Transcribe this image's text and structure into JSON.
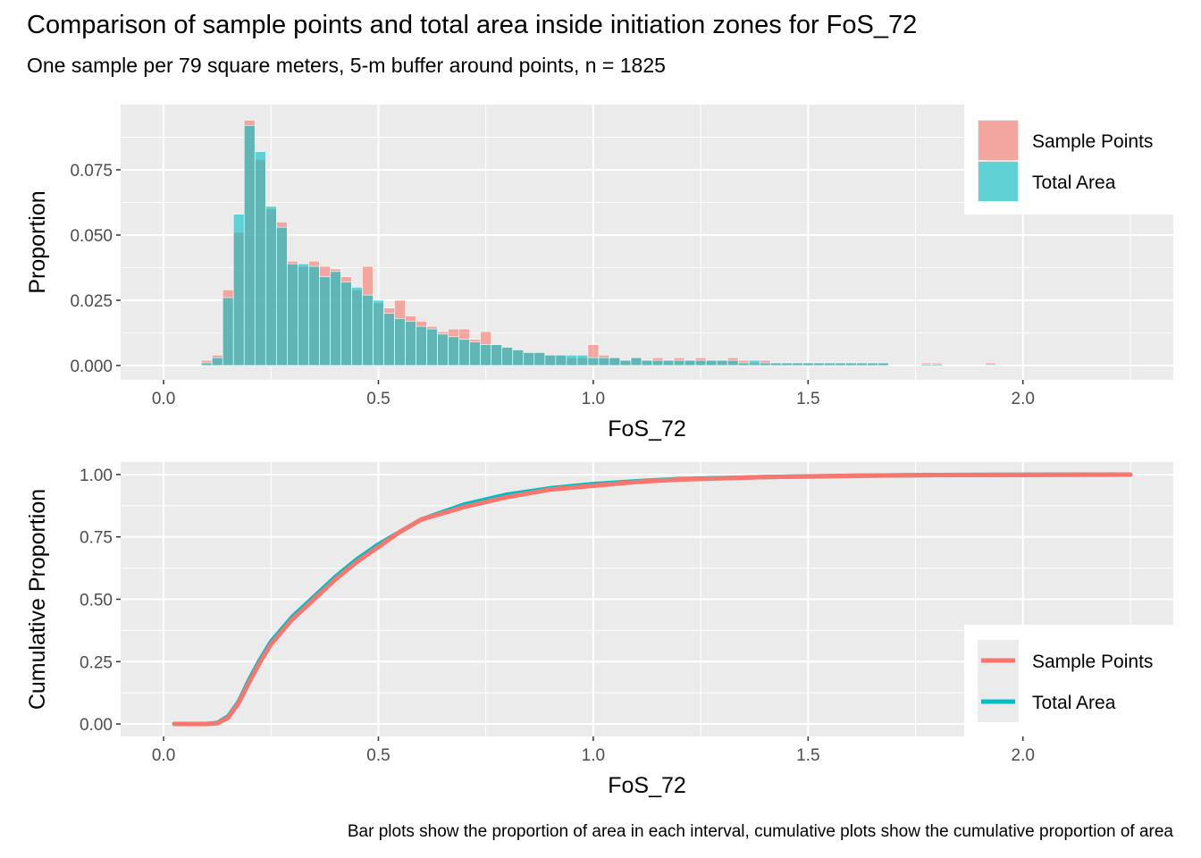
{
  "title": "Comparison of sample points and total area inside initiation zones for FoS_72",
  "subtitle": "One sample per 79 square meters, 5-m buffer around points, n = 1825",
  "caption": "Bar plots show the proportion of area in each interval, cumulative plots show the cumulative proportion of area",
  "colors": {
    "sample_points": "#F8766D",
    "total_area": "#00BFC4",
    "panel_bg": "#EBEBEB",
    "grid": "#FFFFFF"
  },
  "chart_data": [
    {
      "type": "bar",
      "xlabel": "FoS_72",
      "ylabel": "Proportion",
      "xlim": [
        -0.1,
        2.35
      ],
      "ylim": [
        -0.0055,
        0.1
      ],
      "x_ticks": [
        0.0,
        0.5,
        1.0,
        1.5,
        2.0
      ],
      "x_tick_labels": [
        "0.0",
        "0.5",
        "1.0",
        "1.5",
        "2.0"
      ],
      "y_ticks": [
        0.0,
        0.025,
        0.05,
        0.075
      ],
      "y_tick_labels": [
        "0.000",
        "0.025",
        "0.050",
        "0.075"
      ],
      "legend_position": "top-right",
      "bin_width": 0.025,
      "x": [
        0.1,
        0.125,
        0.15,
        0.175,
        0.2,
        0.225,
        0.25,
        0.275,
        0.3,
        0.325,
        0.35,
        0.375,
        0.4,
        0.425,
        0.45,
        0.475,
        0.5,
        0.525,
        0.55,
        0.575,
        0.6,
        0.625,
        0.65,
        0.675,
        0.7,
        0.725,
        0.75,
        0.775,
        0.8,
        0.825,
        0.85,
        0.875,
        0.9,
        0.925,
        0.95,
        0.975,
        1.0,
        1.025,
        1.05,
        1.075,
        1.1,
        1.125,
        1.15,
        1.175,
        1.2,
        1.225,
        1.25,
        1.275,
        1.3,
        1.325,
        1.35,
        1.375,
        1.4,
        1.425,
        1.45,
        1.475,
        1.5,
        1.525,
        1.55,
        1.575,
        1.6,
        1.625,
        1.65,
        1.675,
        1.775,
        1.8,
        1.925
      ],
      "series": [
        {
          "name": "Sample Points",
          "values": [
            0.002,
            0.004,
            0.029,
            0.051,
            0.094,
            0.079,
            0.06,
            0.055,
            0.04,
            0.038,
            0.04,
            0.038,
            0.037,
            0.034,
            0.029,
            0.038,
            0.024,
            0.022,
            0.025,
            0.019,
            0.017,
            0.015,
            0.013,
            0.014,
            0.014,
            0.01,
            0.013,
            0.008,
            0.007,
            0.006,
            0.005,
            0.005,
            0.004,
            0.004,
            0.003,
            0.003,
            0.008,
            0.004,
            0.003,
            0.002,
            0.003,
            0.002,
            0.003,
            0.002,
            0.003,
            0.002,
            0.003,
            0.002,
            0.002,
            0.003,
            0.002,
            0.001,
            0.002,
            0.001,
            0.001,
            0.001,
            0.001,
            0.001,
            0.001,
            0.001,
            0.001,
            0.001,
            0.001,
            0.001,
            0.001,
            0.001,
            0.001
          ]
        },
        {
          "name": "Total Area",
          "values": [
            0.001,
            0.003,
            0.026,
            0.058,
            0.092,
            0.082,
            0.061,
            0.053,
            0.039,
            0.039,
            0.038,
            0.034,
            0.036,
            0.032,
            0.03,
            0.027,
            0.025,
            0.02,
            0.018,
            0.017,
            0.015,
            0.014,
            0.012,
            0.011,
            0.01,
            0.009,
            0.008,
            0.008,
            0.007,
            0.006,
            0.005,
            0.005,
            0.004,
            0.004,
            0.004,
            0.004,
            0.003,
            0.003,
            0.003,
            0.002,
            0.003,
            0.002,
            0.002,
            0.002,
            0.002,
            0.002,
            0.002,
            0.002,
            0.002,
            0.002,
            0.001,
            0.002,
            0.001,
            0.001,
            0.001,
            0.001,
            0.001,
            0.001,
            0.001,
            0.001,
            0.001,
            0.001,
            0.001,
            0.001,
            0.0005,
            0.0005,
            0.0003
          ]
        }
      ]
    },
    {
      "type": "line",
      "xlabel": "FoS_72",
      "ylabel": "Cumulative Proportion",
      "xlim": [
        -0.1,
        2.35
      ],
      "ylim": [
        -0.05,
        1.05
      ],
      "x_ticks": [
        0.0,
        0.5,
        1.0,
        1.5,
        2.0
      ],
      "x_tick_labels": [
        "0.0",
        "0.5",
        "1.0",
        "1.5",
        "2.0"
      ],
      "y_ticks": [
        0.0,
        0.25,
        0.5,
        0.75,
        1.0
      ],
      "y_tick_labels": [
        "0.00",
        "0.25",
        "0.50",
        "0.75",
        "1.00"
      ],
      "legend_position": "bottom-right",
      "series": [
        {
          "name": "Total Area",
          "x": [
            0.025,
            0.1,
            0.125,
            0.15,
            0.175,
            0.2,
            0.225,
            0.25,
            0.3,
            0.35,
            0.4,
            0.45,
            0.5,
            0.55,
            0.6,
            0.7,
            0.8,
            0.9,
            1.0,
            1.1,
            1.2,
            1.4,
            1.6,
            1.8,
            2.0,
            2.25
          ],
          "y": [
            0.0,
            0.0,
            0.004,
            0.03,
            0.09,
            0.18,
            0.26,
            0.33,
            0.43,
            0.51,
            0.59,
            0.66,
            0.72,
            0.77,
            0.82,
            0.88,
            0.92,
            0.945,
            0.962,
            0.973,
            0.982,
            0.99,
            0.995,
            0.998,
            0.999,
            1.0
          ]
        },
        {
          "name": "Sample Points",
          "x": [
            0.025,
            0.1,
            0.125,
            0.15,
            0.175,
            0.2,
            0.225,
            0.25,
            0.3,
            0.35,
            0.4,
            0.45,
            0.5,
            0.55,
            0.6,
            0.7,
            0.8,
            0.9,
            1.0,
            1.1,
            1.2,
            1.4,
            1.6,
            1.8,
            2.0,
            2.25
          ],
          "y": [
            0.0,
            0.0,
            0.003,
            0.025,
            0.085,
            0.17,
            0.25,
            0.32,
            0.42,
            0.5,
            0.58,
            0.65,
            0.71,
            0.77,
            0.82,
            0.87,
            0.91,
            0.94,
            0.955,
            0.97,
            0.98,
            0.99,
            0.995,
            0.998,
            0.999,
            1.0
          ]
        }
      ]
    }
  ]
}
